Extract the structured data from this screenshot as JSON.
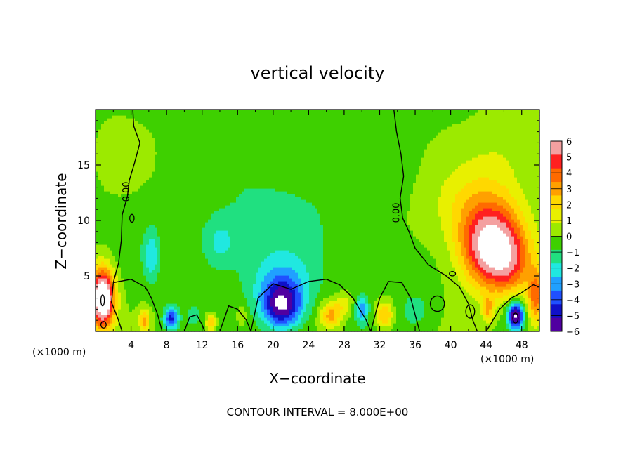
{
  "chart_data": {
    "type": "heatmap",
    "title": "vertical velocity",
    "xlabel": "X−coordinate",
    "ylabel": "Z−coordinate",
    "x_unit_left": "(×1000 m)",
    "x_unit_right": "(×1000 m)",
    "footer": "CONTOUR INTERVAL = 8.000E+00",
    "xlim": [
      0,
      50
    ],
    "ylim": [
      0,
      20
    ],
    "x_ticks": [
      4,
      8,
      12,
      16,
      20,
      24,
      28,
      32,
      36,
      40,
      44,
      48
    ],
    "x_tick_labels": [
      "4",
      "8",
      "12",
      "16",
      "20",
      "24",
      "28",
      "32",
      "36",
      "40",
      "44",
      "48"
    ],
    "y_ticks": [
      5,
      10,
      15
    ],
    "y_tick_labels": [
      "5",
      "10",
      "15"
    ],
    "contour_labels": [
      {
        "text": "0.00",
        "x": 3.8,
        "z": 12.6
      },
      {
        "text": "0.00",
        "x": 34.2,
        "z": 10.7
      }
    ],
    "colorbar": {
      "range": [
        -6,
        6
      ],
      "ticks": [
        6,
        5,
        4,
        3,
        2,
        1,
        0,
        -1,
        -2,
        -3,
        -4,
        -5,
        -6
      ],
      "tick_labels": [
        "6",
        "5",
        "4",
        "3",
        "2",
        "1",
        "0",
        "−1",
        "−2",
        "−3",
        "−4",
        "−5",
        "−6"
      ],
      "colors": [
        "#f4a0a0",
        "#ff2020",
        "#ff6a00",
        "#ffa000",
        "#ffd800",
        "#e8f000",
        "#9cea00",
        "#3ed000",
        "#20e080",
        "#20e8e0",
        "#20a0ff",
        "#2050ff",
        "#1010c8",
        "#5000a0"
      ]
    },
    "features": [
      {
        "x": 0.8,
        "z": 3.0,
        "sx": 1.3,
        "sz": 2.6,
        "w": 9
      },
      {
        "x": 44.5,
        "z": 7.5,
        "sx": 3.2,
        "sz": 3.5,
        "w": 6.5
      },
      {
        "x": 43.0,
        "z": 11.0,
        "sx": 5.0,
        "sz": 4.0,
        "w": 2.2
      },
      {
        "x": 47.0,
        "z": 6.0,
        "sx": 2.5,
        "sz": 3.0,
        "w": 2.5
      },
      {
        "x": 49.6,
        "z": 3.0,
        "sx": 0.9,
        "sz": 2.5,
        "w": 4
      },
      {
        "x": 46.5,
        "z": 16.5,
        "sx": 4.0,
        "sz": 4.0,
        "w": 0.8
      },
      {
        "x": 21.0,
        "z": 2.3,
        "sx": 2.2,
        "sz": 2.0,
        "w": -5.5
      },
      {
        "x": 21.0,
        "z": 4.5,
        "sx": 3.5,
        "sz": 2.5,
        "w": -2.0
      },
      {
        "x": 8.5,
        "z": 1.2,
        "sx": 0.8,
        "sz": 1.0,
        "w": -4.5
      },
      {
        "x": 47.3,
        "z": 1.5,
        "sx": 0.9,
        "sz": 1.2,
        "w": -6.5
      },
      {
        "x": 30.0,
        "z": 2.0,
        "sx": 0.7,
        "sz": 1.2,
        "w": -3.0
      },
      {
        "x": 6.3,
        "z": 6.8,
        "sx": 0.9,
        "sz": 2.3,
        "w": -2.0
      },
      {
        "x": 14.0,
        "z": 8.0,
        "sx": 2.0,
        "sz": 2.2,
        "w": -1.6
      },
      {
        "x": 20.0,
        "z": 10.0,
        "sx": 8.0,
        "sz": 6.0,
        "w": -0.9
      },
      {
        "x": 36.0,
        "z": 2.0,
        "sx": 1.5,
        "sz": 1.5,
        "w": -1.2
      },
      {
        "x": 11.0,
        "z": 1.5,
        "sx": 0.8,
        "sz": 1.0,
        "w": -1.0
      },
      {
        "x": 5.5,
        "z": 1.0,
        "sx": 0.6,
        "sz": 1.0,
        "w": 3.0
      },
      {
        "x": 13.0,
        "z": 0.8,
        "sx": 0.6,
        "sz": 0.8,
        "w": 3.0
      },
      {
        "x": 26.5,
        "z": 1.5,
        "sx": 1.2,
        "sz": 1.2,
        "w": 3.2
      },
      {
        "x": 32.5,
        "z": 1.5,
        "sx": 1.0,
        "sz": 1.2,
        "w": 3.0
      },
      {
        "x": 44.2,
        "z": 2.0,
        "sx": 0.6,
        "sz": 1.2,
        "w": 2.5
      },
      {
        "x": 28.0,
        "z": 2.5,
        "sx": 1.0,
        "sz": 1.0,
        "w": 1.5
      },
      {
        "x": 16.5,
        "z": 1.5,
        "sx": 0.6,
        "sz": 1.0,
        "w": 1.2
      },
      {
        "x": 2.5,
        "z": 16.0,
        "sx": 3.0,
        "sz": 4.0,
        "w": 0.4
      }
    ],
    "background_w": -0.2,
    "zero_contours": [
      [
        [
          4.2,
          20
        ],
        [
          4.3,
          18.5
        ],
        [
          5.0,
          17.0
        ],
        [
          4.4,
          15.2
        ],
        [
          3.8,
          13.6
        ],
        [
          3.6,
          12.2
        ],
        [
          3.0,
          10.5
        ],
        [
          2.9,
          8.2
        ],
        [
          2.6,
          6.2
        ],
        [
          2.0,
          4.4
        ],
        [
          1.8,
          2.6
        ],
        [
          2.5,
          1.2
        ],
        [
          3.0,
          0
        ]
      ],
      [
        [
          33.6,
          20
        ],
        [
          33.9,
          18.0
        ],
        [
          34.4,
          16.0
        ],
        [
          34.7,
          14.0
        ],
        [
          34.3,
          12.0
        ],
        [
          34.6,
          10.2
        ],
        [
          35.3,
          9.0
        ],
        [
          36.0,
          7.5
        ],
        [
          37.5,
          6.0
        ],
        [
          39.5,
          5.0
        ],
        [
          41.0,
          4.0
        ],
        [
          42.0,
          2.5
        ],
        [
          42.5,
          1.0
        ],
        [
          43.0,
          0
        ]
      ],
      [
        [
          2.0,
          4.4
        ],
        [
          4.0,
          4.7
        ],
        [
          5.6,
          4.0
        ],
        [
          6.3,
          3.0
        ],
        [
          7.0,
          1.5
        ],
        [
          7.5,
          0
        ]
      ],
      [
        [
          14.0,
          0
        ],
        [
          15.0,
          2.3
        ],
        [
          16.0,
          2.0
        ],
        [
          17.0,
          1.0
        ],
        [
          17.5,
          0
        ]
      ],
      [
        [
          17.5,
          0
        ],
        [
          18.3,
          3.0
        ],
        [
          20.0,
          4.3
        ],
        [
          22.0,
          3.8
        ],
        [
          24.0,
          4.5
        ],
        [
          26.0,
          4.7
        ],
        [
          27.5,
          4.2
        ],
        [
          29.0,
          3.0
        ],
        [
          30.5,
          1.0
        ],
        [
          31.0,
          0
        ]
      ],
      [
        [
          31.0,
          0
        ],
        [
          32.0,
          3.0
        ],
        [
          33.0,
          4.5
        ],
        [
          34.5,
          4.4
        ],
        [
          35.5,
          3.0
        ],
        [
          36.0,
          1.5
        ],
        [
          36.5,
          0
        ]
      ],
      [
        [
          44.0,
          0
        ],
        [
          45.5,
          2.0
        ],
        [
          46.8,
          3.0
        ],
        [
          48.0,
          3.5
        ],
        [
          49.3,
          4.2
        ],
        [
          50,
          4.0
        ]
      ],
      [
        [
          10.0,
          0
        ],
        [
          10.6,
          1.3
        ],
        [
          11.4,
          1.5
        ],
        [
          12.0,
          0.6
        ],
        [
          12.3,
          0
        ]
      ]
    ],
    "small_contours": [
      {
        "x": 4.1,
        "z": 10.2,
        "rx": 0.25,
        "rz": 0.35
      },
      {
        "x": 0.8,
        "z": 2.8,
        "rx": 0.2,
        "rz": 0.5
      },
      {
        "x": 47.3,
        "z": 1.2,
        "rx": 0.3,
        "rz": 0.45
      },
      {
        "x": 40.2,
        "z": 5.2,
        "rx": 0.35,
        "rz": 0.2
      },
      {
        "x": 38.5,
        "z": 2.5,
        "rx": 0.8,
        "rz": 0.7
      },
      {
        "x": 42.2,
        "z": 1.8,
        "rx": 0.5,
        "rz": 0.6
      },
      {
        "x": 0.9,
        "z": 0.6,
        "rx": 0.3,
        "rz": 0.3
      }
    ]
  }
}
